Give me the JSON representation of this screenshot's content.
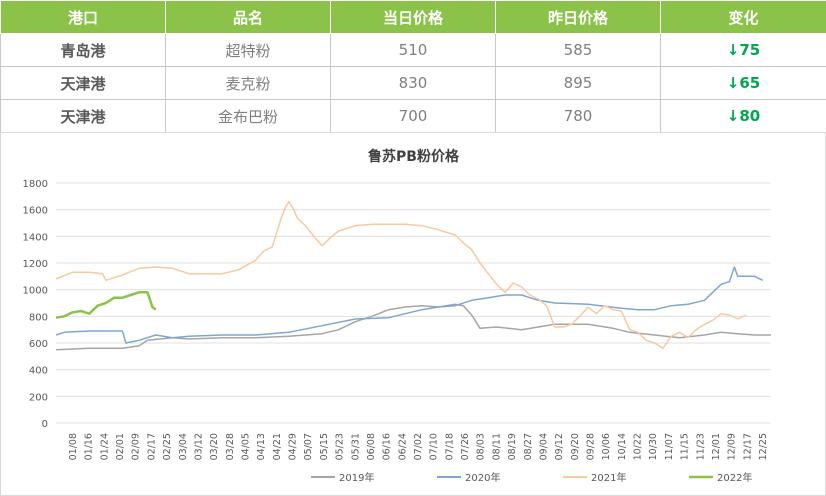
{
  "table": {
    "headers": [
      "港口",
      "品名",
      "当日价格",
      "昨日价格",
      "变化"
    ],
    "rows": [
      {
        "port": "青岛港",
        "product": "超特粉",
        "today": "510",
        "yesterday": "585",
        "change": "↓75"
      },
      {
        "port": "天津港",
        "product": "麦克粉",
        "today": "830",
        "yesterday": "895",
        "change": "↓65"
      },
      {
        "port": "天津港",
        "product": "金布巴粉",
        "today": "700",
        "yesterday": "780",
        "change": "↓80"
      }
    ]
  },
  "chart_data": {
    "type": "line",
    "title": "鲁苏PB粉价格",
    "ylim": [
      0,
      1800
    ],
    "yticks": [
      0,
      200,
      400,
      600,
      800,
      1000,
      1200,
      1400,
      1600,
      1800
    ],
    "grid": "horizontal",
    "legend_position": "bottom",
    "x_tick_labels": [
      "01/08",
      "01/16",
      "01/24",
      "02/01",
      "02/09",
      "02/17",
      "02/25",
      "03/04",
      "03/12",
      "03/20",
      "03/28",
      "04/05",
      "04/13",
      "04/21",
      "04/29",
      "05/07",
      "05/15",
      "05/23",
      "05/31",
      "06/08",
      "06/16",
      "06/24",
      "07/02",
      "07/10",
      "07/18",
      "07/26",
      "08/03",
      "08/11",
      "08/19",
      "08/27",
      "09/04",
      "09/12",
      "09/20",
      "09/28",
      "10/06",
      "10/14",
      "10/22",
      "10/30",
      "11/07",
      "11/15",
      "11/23",
      "12/01",
      "12/09",
      "12/17",
      "12/25"
    ],
    "series": [
      {
        "name": "2019年",
        "color": "#a5a5a5",
        "values": [
          [
            0,
            550
          ],
          [
            20,
            560
          ],
          [
            40,
            560
          ],
          [
            50,
            580
          ],
          [
            55,
            620
          ],
          [
            70,
            640
          ],
          [
            80,
            630
          ],
          [
            100,
            640
          ],
          [
            120,
            640
          ],
          [
            140,
            650
          ],
          [
            160,
            670
          ],
          [
            170,
            700
          ],
          [
            180,
            760
          ],
          [
            190,
            800
          ],
          [
            200,
            850
          ],
          [
            210,
            870
          ],
          [
            220,
            880
          ],
          [
            230,
            870
          ],
          [
            240,
            890
          ],
          [
            245,
            880
          ],
          [
            250,
            810
          ],
          [
            255,
            710
          ],
          [
            265,
            720
          ],
          [
            280,
            700
          ],
          [
            300,
            740
          ],
          [
            320,
            740
          ],
          [
            335,
            710
          ],
          [
            345,
            680
          ],
          [
            360,
            660
          ],
          [
            375,
            640
          ],
          [
            390,
            660
          ],
          [
            400,
            680
          ],
          [
            410,
            670
          ],
          [
            420,
            660
          ],
          [
            430,
            660
          ]
        ]
      },
      {
        "name": "2020年",
        "color": "#7ea6d3",
        "values": [
          [
            0,
            660
          ],
          [
            5,
            680
          ],
          [
            20,
            690
          ],
          [
            40,
            690
          ],
          [
            42,
            600
          ],
          [
            50,
            620
          ],
          [
            60,
            660
          ],
          [
            70,
            640
          ],
          [
            80,
            650
          ],
          [
            100,
            660
          ],
          [
            120,
            660
          ],
          [
            140,
            680
          ],
          [
            160,
            730
          ],
          [
            180,
            780
          ],
          [
            200,
            790
          ],
          [
            210,
            820
          ],
          [
            220,
            850
          ],
          [
            230,
            870
          ],
          [
            240,
            880
          ],
          [
            250,
            920
          ],
          [
            260,
            940
          ],
          [
            270,
            960
          ],
          [
            280,
            960
          ],
          [
            290,
            920
          ],
          [
            300,
            900
          ],
          [
            320,
            890
          ],
          [
            340,
            860
          ],
          [
            350,
            850
          ],
          [
            360,
            850
          ],
          [
            370,
            880
          ],
          [
            380,
            890
          ],
          [
            390,
            920
          ],
          [
            395,
            980
          ],
          [
            400,
            1040
          ],
          [
            405,
            1060
          ],
          [
            408,
            1170
          ],
          [
            410,
            1100
          ],
          [
            420,
            1100
          ],
          [
            425,
            1070
          ]
        ]
      },
      {
        "name": "2021年",
        "color": "#f6c9a1",
        "values": [
          [
            0,
            1080
          ],
          [
            10,
            1130
          ],
          [
            20,
            1130
          ],
          [
            28,
            1120
          ],
          [
            30,
            1070
          ],
          [
            40,
            1110
          ],
          [
            50,
            1160
          ],
          [
            60,
            1170
          ],
          [
            70,
            1160
          ],
          [
            80,
            1120
          ],
          [
            90,
            1120
          ],
          [
            100,
            1120
          ],
          [
            110,
            1150
          ],
          [
            120,
            1220
          ],
          [
            125,
            1290
          ],
          [
            130,
            1320
          ],
          [
            132,
            1400
          ],
          [
            135,
            1520
          ],
          [
            138,
            1620
          ],
          [
            140,
            1660
          ],
          [
            143,
            1600
          ],
          [
            145,
            1540
          ],
          [
            150,
            1480
          ],
          [
            155,
            1400
          ],
          [
            160,
            1330
          ],
          [
            165,
            1390
          ],
          [
            170,
            1440
          ],
          [
            180,
            1480
          ],
          [
            190,
            1490
          ],
          [
            200,
            1490
          ],
          [
            210,
            1490
          ],
          [
            220,
            1480
          ],
          [
            230,
            1450
          ],
          [
            240,
            1410
          ],
          [
            245,
            1350
          ],
          [
            250,
            1300
          ],
          [
            255,
            1200
          ],
          [
            260,
            1120
          ],
          [
            265,
            1040
          ],
          [
            270,
            980
          ],
          [
            275,
            1050
          ],
          [
            280,
            1020
          ],
          [
            285,
            960
          ],
          [
            290,
            930
          ],
          [
            295,
            880
          ],
          [
            300,
            720
          ],
          [
            305,
            720
          ],
          [
            310,
            740
          ],
          [
            315,
            800
          ],
          [
            320,
            870
          ],
          [
            325,
            820
          ],
          [
            330,
            880
          ],
          [
            335,
            850
          ],
          [
            340,
            840
          ],
          [
            345,
            700
          ],
          [
            350,
            680
          ],
          [
            355,
            620
          ],
          [
            360,
            600
          ],
          [
            365,
            560
          ],
          [
            370,
            650
          ],
          [
            375,
            680
          ],
          [
            380,
            640
          ],
          [
            385,
            700
          ],
          [
            390,
            740
          ],
          [
            395,
            770
          ],
          [
            400,
            820
          ],
          [
            405,
            810
          ],
          [
            410,
            780
          ],
          [
            415,
            810
          ]
        ]
      },
      {
        "name": "2022年",
        "color": "#8bc34a",
        "values": [
          [
            0,
            790
          ],
          [
            5,
            800
          ],
          [
            10,
            830
          ],
          [
            15,
            840
          ],
          [
            20,
            820
          ],
          [
            25,
            880
          ],
          [
            30,
            900
          ],
          [
            35,
            940
          ],
          [
            40,
            940
          ],
          [
            45,
            960
          ],
          [
            50,
            980
          ],
          [
            55,
            980
          ],
          [
            58,
            870
          ],
          [
            60,
            850
          ]
        ]
      }
    ]
  }
}
